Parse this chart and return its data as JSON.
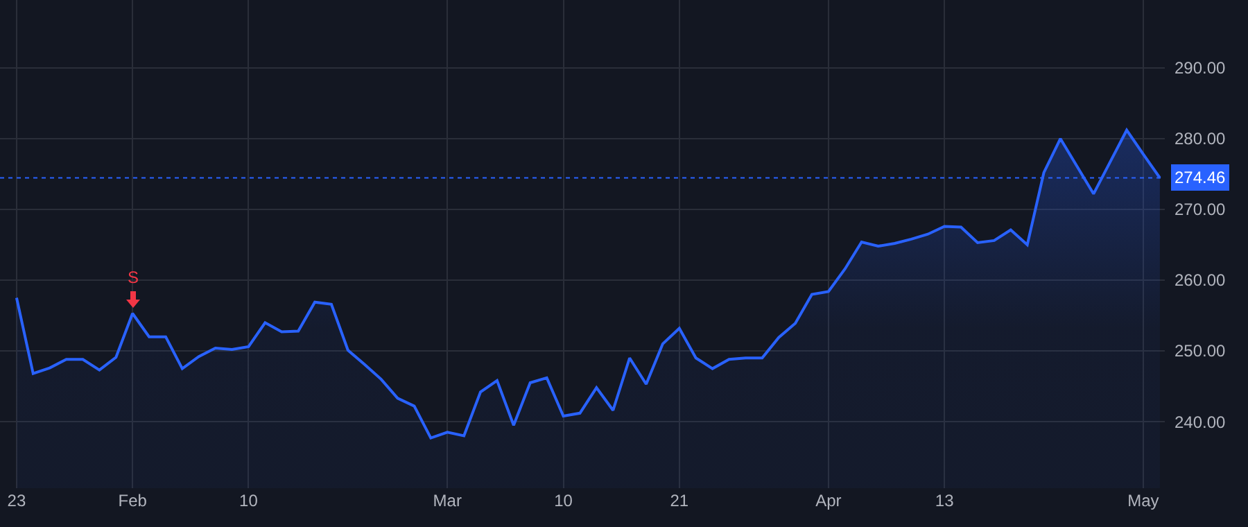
{
  "chart_data": {
    "type": "area",
    "categories": [
      "23",
      null,
      null,
      null,
      null,
      null,
      null,
      "Feb",
      null,
      null,
      null,
      null,
      null,
      null,
      "10",
      null,
      null,
      null,
      null,
      null,
      null,
      null,
      null,
      null,
      null,
      null,
      "Mar",
      null,
      null,
      null,
      null,
      null,
      null,
      "10",
      null,
      null,
      null,
      null,
      null,
      null,
      "21",
      null,
      null,
      null,
      null,
      null,
      null,
      null,
      null,
      "Apr",
      null,
      null,
      null,
      null,
      null,
      null,
      "13",
      null,
      null,
      null,
      null,
      null,
      null,
      null,
      null,
      null,
      null,
      null,
      "May",
      null
    ],
    "series": [
      {
        "color": "#2962ff",
        "values": [
          257.5,
          246.8,
          247.6,
          248.8,
          248.8,
          247.3,
          249.1,
          255.3,
          252.0,
          252.0,
          247.5,
          249.2,
          250.4,
          250.2,
          250.6,
          254.0,
          252.7,
          252.8,
          256.9,
          256.6,
          250.1,
          248.1,
          246.0,
          243.3,
          242.2,
          237.7,
          238.5,
          238.0,
          244.2,
          245.8,
          239.5,
          245.5,
          246.2,
          240.8,
          241.2,
          244.8,
          241.6,
          249.0,
          245.3,
          251.0,
          253.2,
          249.0,
          247.5,
          248.8,
          249.0,
          249.0,
          251.9,
          253.9,
          258.0,
          258.4,
          261.6,
          265.4,
          264.8,
          265.2,
          265.8,
          266.5,
          267.6,
          267.5,
          265.3,
          265.6,
          267.1,
          265.0,
          275.2,
          280.0,
          276.1,
          272.2,
          276.7,
          281.2,
          277.8,
          274.46
        ]
      }
    ],
    "ylim": [
      230.6,
      299.6
    ],
    "yticks": [
      {
        "value": 240,
        "label": "240.00"
      },
      {
        "value": 250,
        "label": "250.00"
      },
      {
        "value": 260,
        "label": "260.00"
      },
      {
        "value": 270,
        "label": "270.00"
      },
      {
        "value": 280,
        "label": "280.00"
      },
      {
        "value": 290,
        "label": "290.00"
      }
    ],
    "ref_lines": [
      {
        "axis": "y",
        "value": 274.46,
        "label": "274.46",
        "color": "#2962ff",
        "line_style": "dotted"
      }
    ],
    "annotations": [
      {
        "text": "S",
        "x": "Feb",
        "y": 255.3
      }
    ],
    "grid": true,
    "line_style": "solid"
  }
}
